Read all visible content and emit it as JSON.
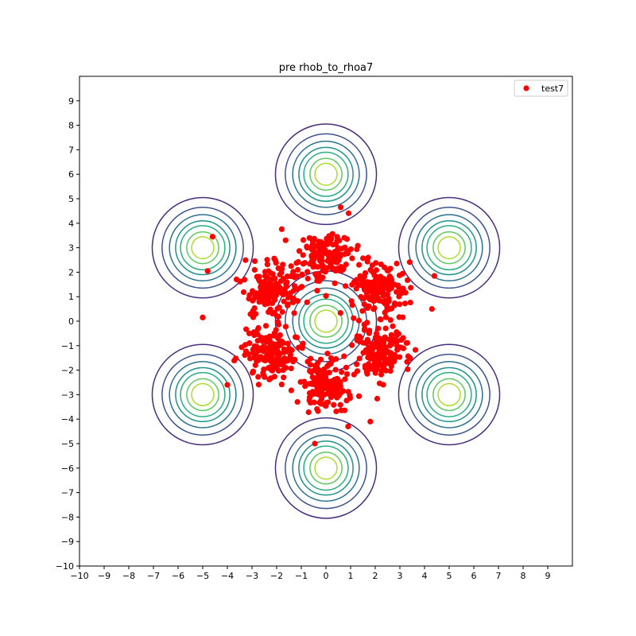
{
  "chart_data": {
    "type": "scatter",
    "title": "pre rhob_to_rhoa7",
    "xlabel": "",
    "ylabel": "",
    "xlim": [
      -10,
      10
    ],
    "ylim": [
      -10,
      10
    ],
    "xticks": [
      -10,
      -9,
      -8,
      -7,
      -6,
      -5,
      -4,
      -3,
      -2,
      -1,
      0,
      1,
      2,
      3,
      4,
      5,
      6,
      7,
      8,
      9
    ],
    "yticks": [
      -10,
      -9,
      -8,
      -7,
      -6,
      -5,
      -4,
      -3,
      -2,
      -1,
      0,
      1,
      2,
      3,
      4,
      5,
      6,
      7,
      8,
      9
    ],
    "grid": false,
    "legend": {
      "position": "top-right",
      "entries": [
        {
          "label": "test7",
          "color": "#ff0000"
        }
      ]
    },
    "series": [
      {
        "name": "test7",
        "kind": "scatter",
        "color": "#ff0000",
        "clusters": [
          {
            "center": [
              0,
              2.6
            ],
            "count": 150,
            "spread": 0.55
          },
          {
            "center": [
              2.2,
              1.3
            ],
            "count": 150,
            "spread": 0.55
          },
          {
            "center": [
              2.2,
              -1.3
            ],
            "count": 150,
            "spread": 0.55
          },
          {
            "center": [
              0,
              -2.6
            ],
            "count": 150,
            "spread": 0.55
          },
          {
            "center": [
              -2.2,
              -1.3
            ],
            "count": 150,
            "spread": 0.55
          },
          {
            "center": [
              -2.2,
              1.3
            ],
            "count": 150,
            "spread": 0.55
          }
        ],
        "outliers": [
          [
            -5.0,
            0.15
          ],
          [
            -4.6,
            3.45
          ],
          [
            -4.8,
            2.05
          ],
          [
            0.6,
            4.65
          ],
          [
            4.3,
            0.5
          ],
          [
            4.4,
            1.85
          ],
          [
            -4.0,
            -2.6
          ],
          [
            -0.45,
            -5.0
          ],
          [
            0.9,
            -4.3
          ],
          [
            1.8,
            -4.1
          ],
          [
            -5.0,
            0.15
          ]
        ]
      },
      {
        "name": "",
        "kind": "contour",
        "centers": [
          [
            0,
            0
          ],
          [
            0,
            6
          ],
          [
            5,
            3
          ],
          [
            5,
            -3
          ],
          [
            0,
            -6
          ],
          [
            -5,
            -3
          ],
          [
            -5,
            3
          ]
        ],
        "radii": [
          2.05,
          1.65,
          1.35,
          1.1,
          0.9,
          0.65,
          0.45
        ],
        "colors": [
          "#472d7b",
          "#3b528b",
          "#2c728e",
          "#21918c",
          "#28ae80",
          "#5ec962",
          "#addc30"
        ]
      }
    ]
  }
}
